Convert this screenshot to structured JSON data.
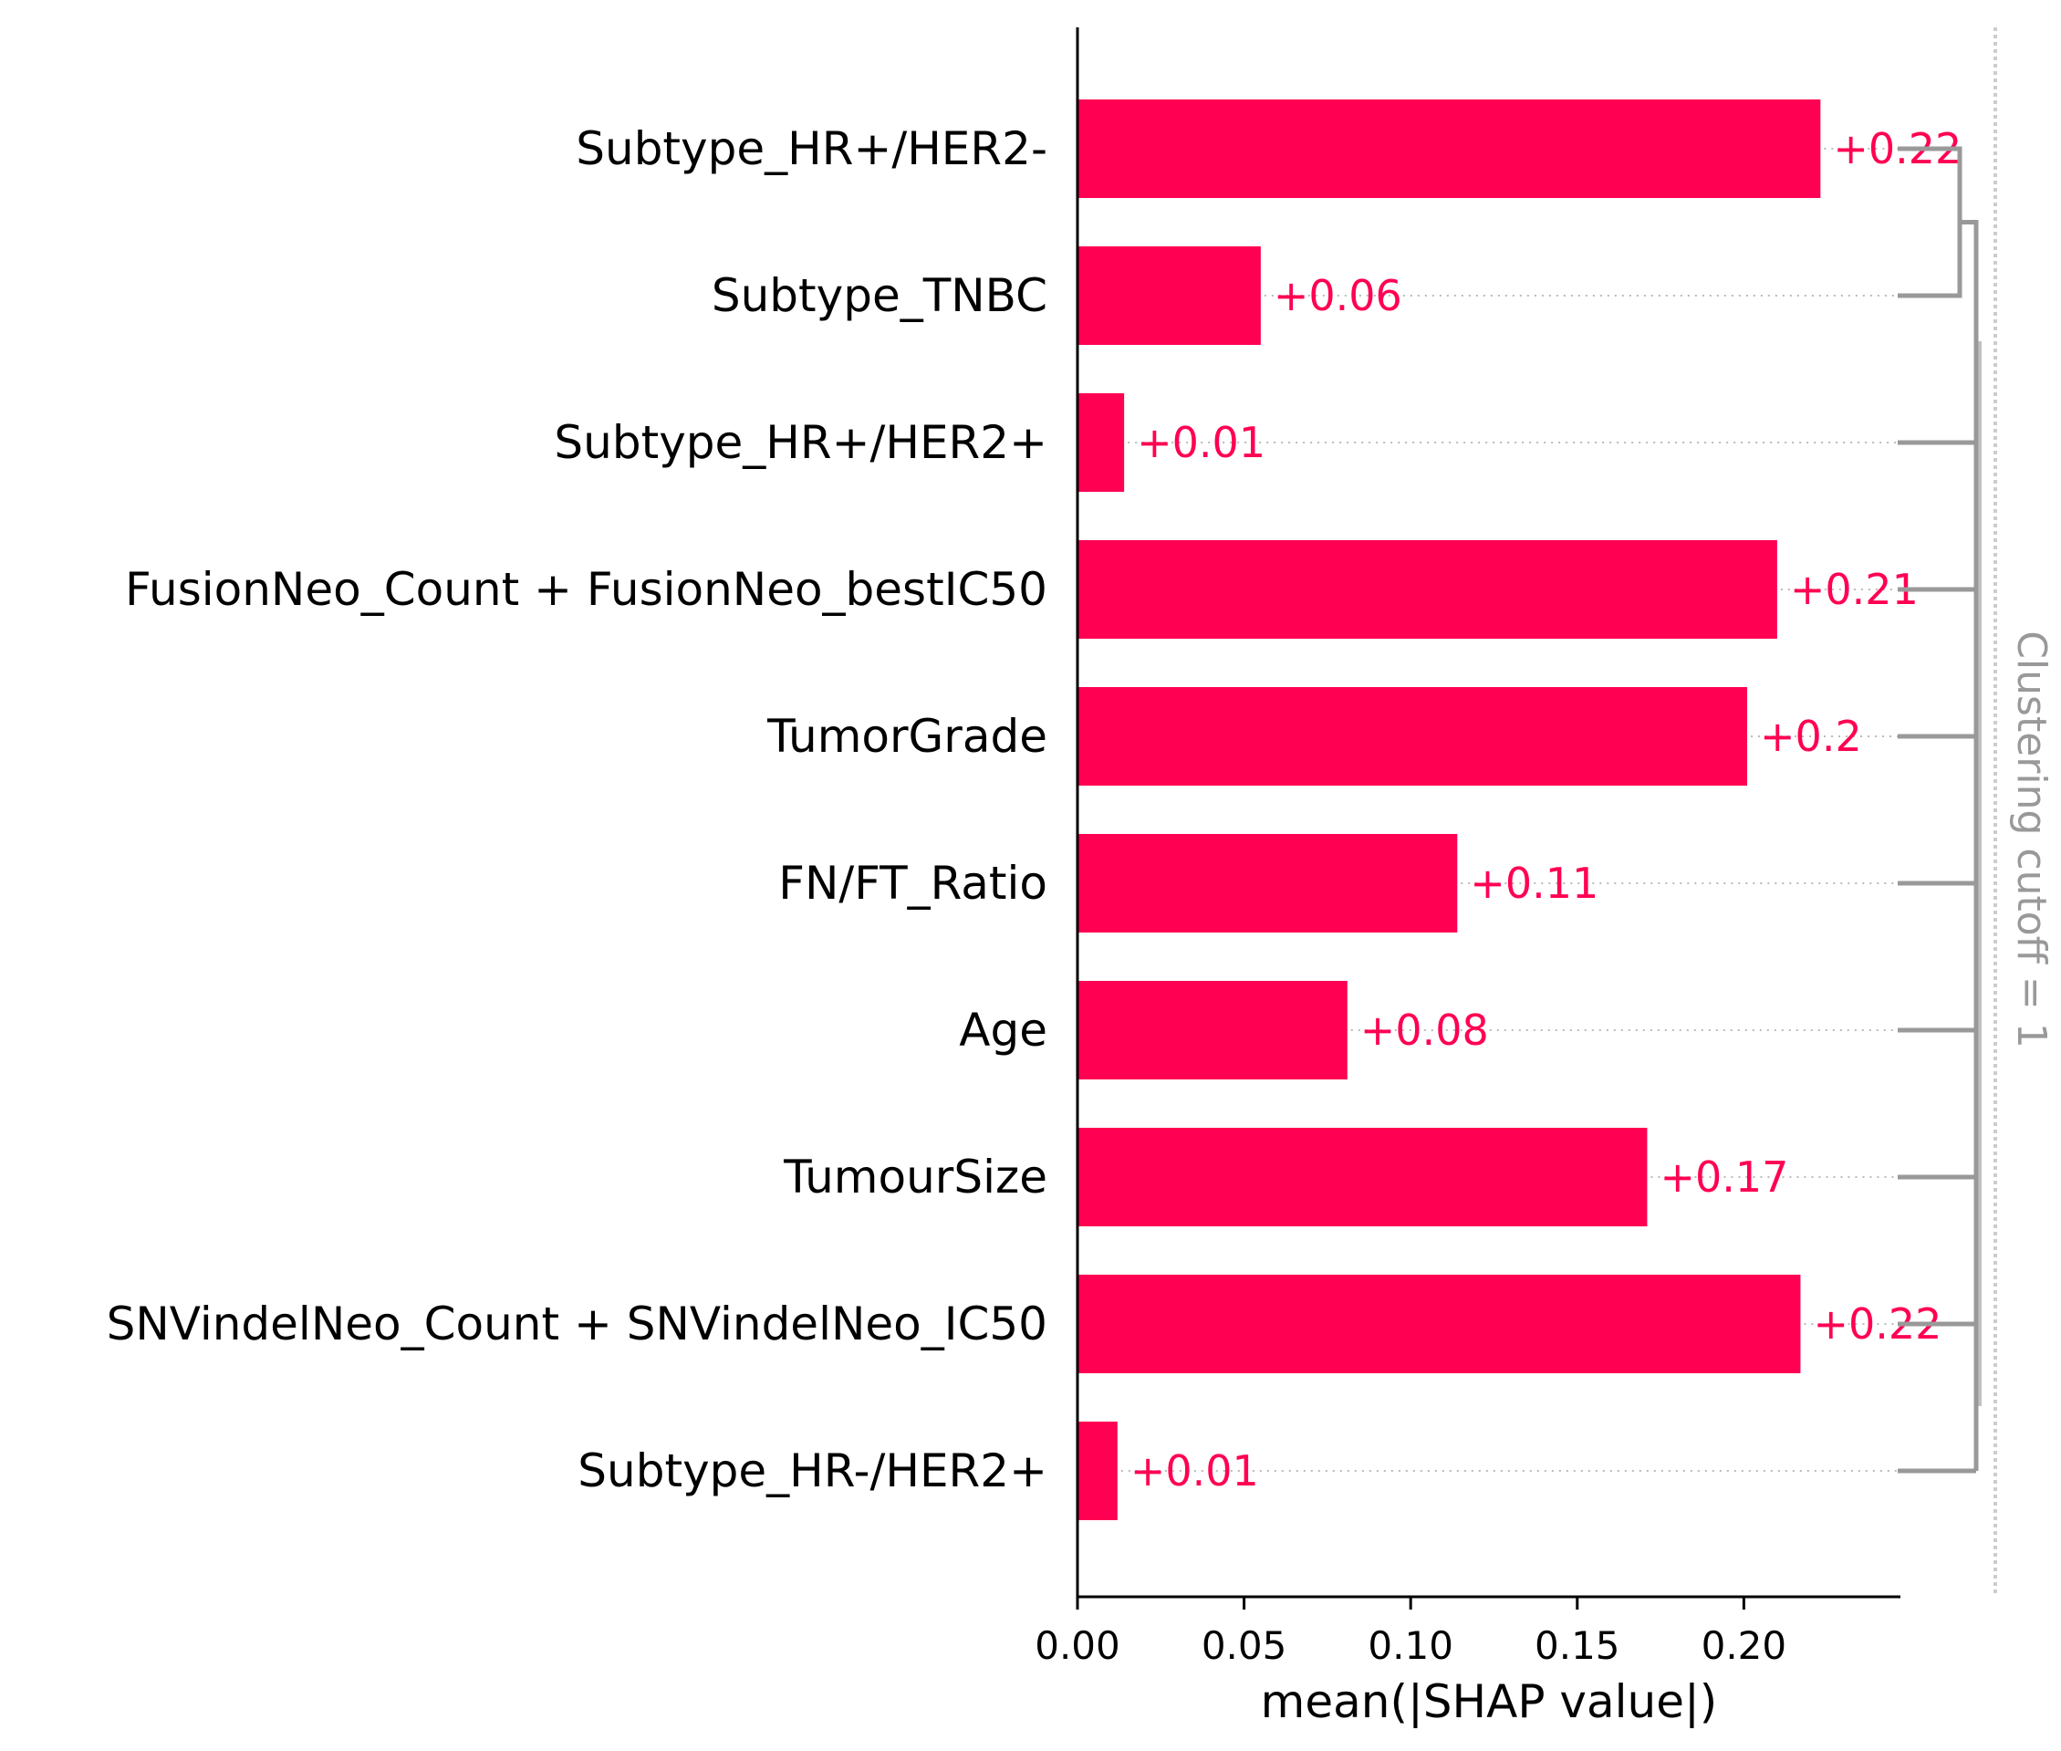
{
  "chart_data": {
    "type": "bar",
    "orientation": "horizontal",
    "categories": [
      "Subtype_HR+/HER2-",
      "Subtype_TNBC",
      "Subtype_HR+/HER2+",
      "FusionNeo_Count + FusionNeo_bestIC50",
      "TumorGrade",
      "FN/FT_Ratio",
      "Age",
      "TumourSize",
      "SNVindelNeo_Count + SNVindelNeo_IC50",
      "Subtype_HR-/HER2+"
    ],
    "values": [
      0.223,
      0.055,
      0.014,
      0.21,
      0.201,
      0.114,
      0.081,
      0.171,
      0.217,
      0.012
    ],
    "value_labels": [
      "+0.22",
      "+0.06",
      "+0.01",
      "+0.21",
      "+0.2",
      "+0.11",
      "+0.08",
      "+0.17",
      "+0.22",
      "+0.01"
    ],
    "xlabel": "mean(|SHAP value|)",
    "xlim": [
      0,
      0.247
    ],
    "xticks": [
      0.0,
      0.05,
      0.1,
      0.15,
      0.2
    ],
    "xtick_labels": [
      "0.00",
      "0.05",
      "0.10",
      "0.15",
      "0.20"
    ],
    "cutoff_label": "Clustering cutoff = 1",
    "colors": {
      "bar": "#ff0052",
      "value_text": "#ff0052",
      "dendrogram": "#999999",
      "grid_dots": "#bbbbbb"
    }
  }
}
